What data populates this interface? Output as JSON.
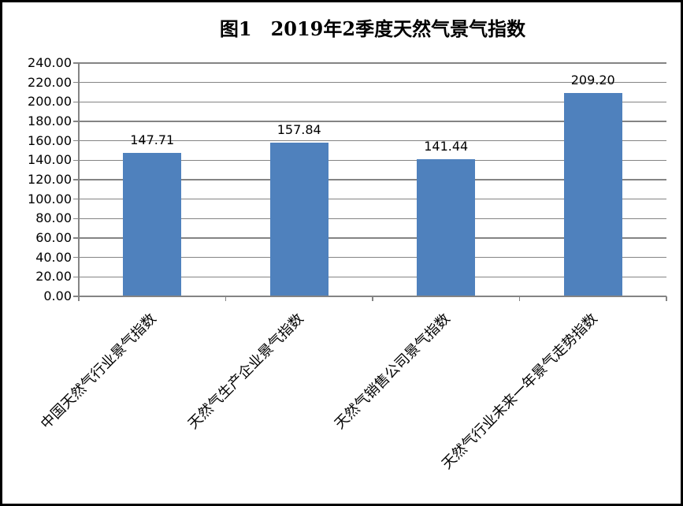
{
  "chart_data": {
    "type": "bar",
    "title": "图1　2019年2季度天然气景气指数",
    "categories": [
      "中国天然气行业景气指数",
      "天然气生产企业景气指数",
      "天然气销售公司景气指数",
      "天然气行业未来一年景气走势指数"
    ],
    "values": [
      147.71,
      157.84,
      141.44,
      209.2
    ],
    "value_labels": [
      "147.71",
      "157.84",
      "141.44",
      "209.20"
    ],
    "xlabel": "",
    "ylabel": "",
    "ylim": [
      0,
      240
    ],
    "ytick_step": 20,
    "ytick_labels": [
      "0.00",
      "20.00",
      "40.00",
      "60.00",
      "80.00",
      "100.00",
      "120.00",
      "140.00",
      "160.00",
      "180.00",
      "200.00",
      "220.00",
      "240.00"
    ],
    "grid": "horizontal",
    "legend_position": "none",
    "colors": {
      "bar_fill": "#4F81BD",
      "gridline": "#848484",
      "axis": "#848484",
      "text": "#000000",
      "background": "#FFFFFF",
      "border": "#000000"
    }
  }
}
